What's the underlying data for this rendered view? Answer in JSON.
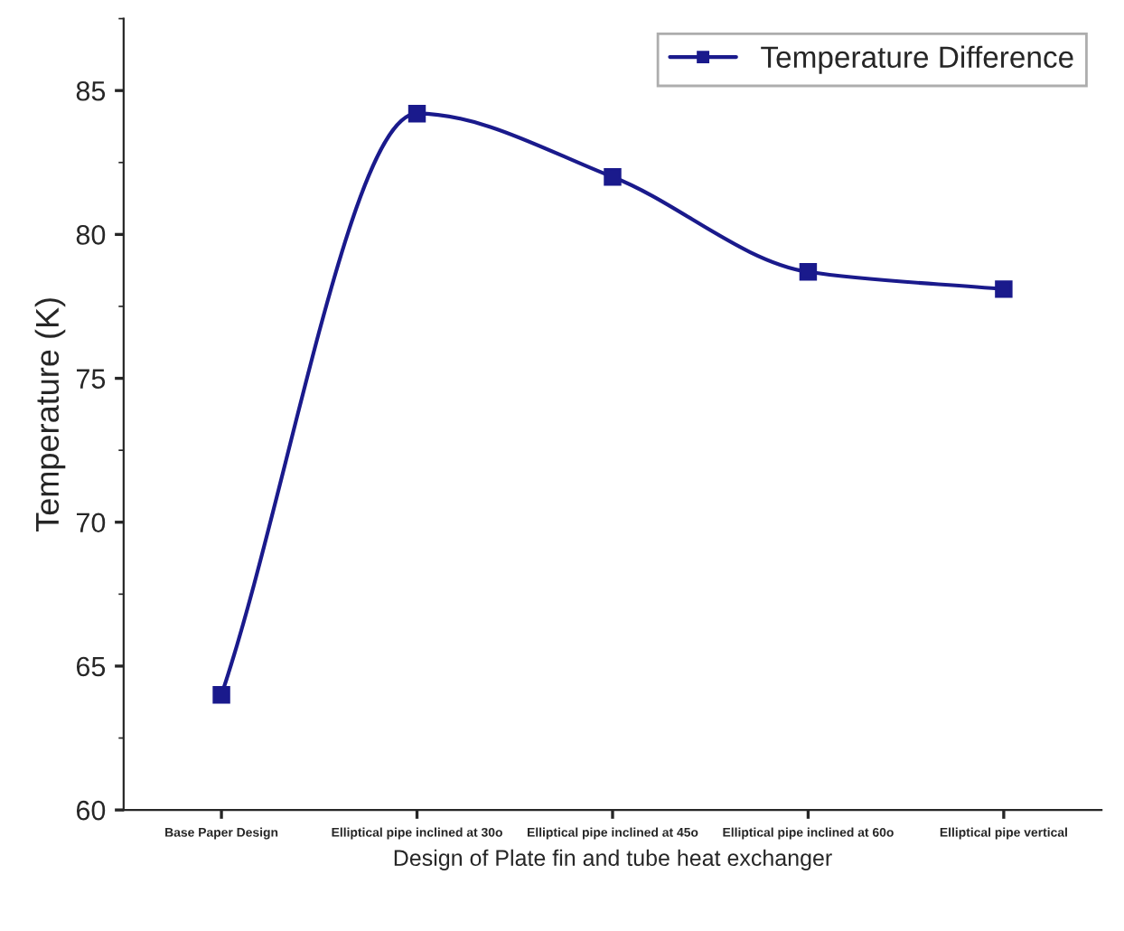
{
  "chart_data": {
    "type": "line",
    "xlabel": "Design of Plate fin and tube heat exchanger",
    "ylabel": "Temperature (K)",
    "categories": [
      "Base Paper Design",
      "Elliptical pipe inclined at 30o",
      "Elliptical pipe inclined at 45o",
      "Elliptical pipe inclined at 60o",
      "Elliptical pipe vertical"
    ],
    "series": [
      {
        "name": "Temperature Difference",
        "color": "#1a1a8c",
        "values": [
          64,
          84.2,
          82,
          78.7,
          78.1
        ]
      }
    ],
    "ylim": [
      60,
      87.5
    ],
    "yticks": [
      60,
      65,
      70,
      75,
      80,
      85
    ],
    "marker": "square",
    "line_style": "solid",
    "legend": "top right",
    "grid": false
  }
}
